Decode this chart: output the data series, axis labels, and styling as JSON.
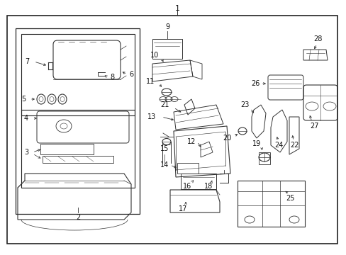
{
  "bg_color": "#f0f0f0",
  "fig_width": 4.89,
  "fig_height": 3.6,
  "dpi": 100
}
